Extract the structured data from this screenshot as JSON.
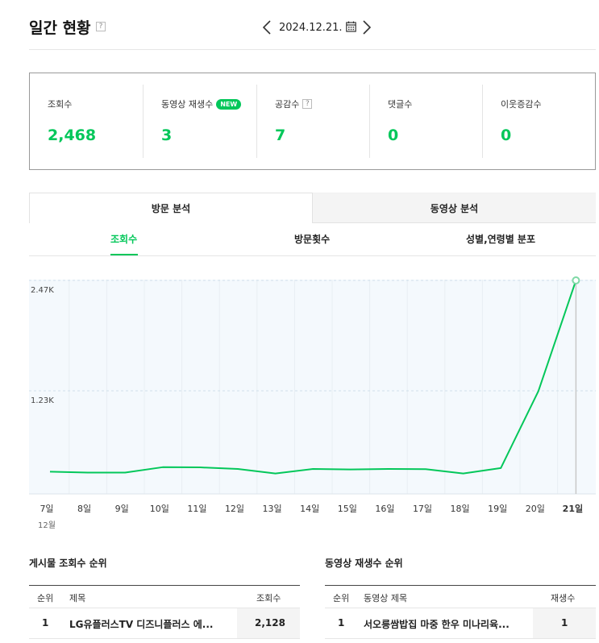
{
  "header": {
    "title": "일간 현황",
    "help": "?",
    "date": "2024.12.21."
  },
  "stats": [
    {
      "label": "조회수",
      "value": "2,468"
    },
    {
      "label": "동영상 재생수",
      "badge": "NEW",
      "value": "3"
    },
    {
      "label": "공감수",
      "help": "?",
      "value": "7"
    },
    {
      "label": "댓글수",
      "value": "0"
    },
    {
      "label": "이웃증감수",
      "value": "0"
    }
  ],
  "tabs": [
    {
      "label": "방문 분석",
      "active": true
    },
    {
      "label": "동영상 분석",
      "active": false
    }
  ],
  "subtabs": [
    {
      "label": "조회수",
      "active": true
    },
    {
      "label": "방문횟수",
      "active": false
    },
    {
      "label": "성별,연령별 분포",
      "active": false
    }
  ],
  "chart_data": {
    "type": "line",
    "categories": [
      "7일",
      "8일",
      "9일",
      "10일",
      "11일",
      "12일",
      "13일",
      "14일",
      "15일",
      "16일",
      "17일",
      "18일",
      "19일",
      "20일",
      "21일"
    ],
    "month_label": "12월",
    "series": [
      {
        "values": [
          330,
          320,
          320,
          380,
          378,
          360,
          310,
          360,
          355,
          360,
          358,
          310,
          370,
          1230,
          2468
        ]
      }
    ],
    "y_ticks": [
      {
        "value": 1234,
        "label": "1.23K"
      },
      {
        "value": 2468,
        "label": "2.47K"
      }
    ],
    "ylim": [
      0,
      2468
    ],
    "highlight_index": 14,
    "line_color": "#03c75a",
    "area_color": "#f4f9fd"
  },
  "post_ranking": {
    "title": "게시물 조회수 순위",
    "headers": {
      "rank": "순위",
      "title": "제목",
      "value": "조회수"
    },
    "rows": [
      {
        "rank": "1",
        "title": "LG유플러스TV 디즈니플러스 에...",
        "value": "2,128"
      }
    ]
  },
  "video_ranking": {
    "title": "동영상 재생수 순위",
    "headers": {
      "rank": "순위",
      "title": "동영상 제목",
      "value": "재생수"
    },
    "rows": [
      {
        "rank": "1",
        "title": "서오릉쌈밥집 마중 한우 미나리육...",
        "value": "1"
      }
    ]
  },
  "colors": {
    "accent": "#03c75a"
  }
}
